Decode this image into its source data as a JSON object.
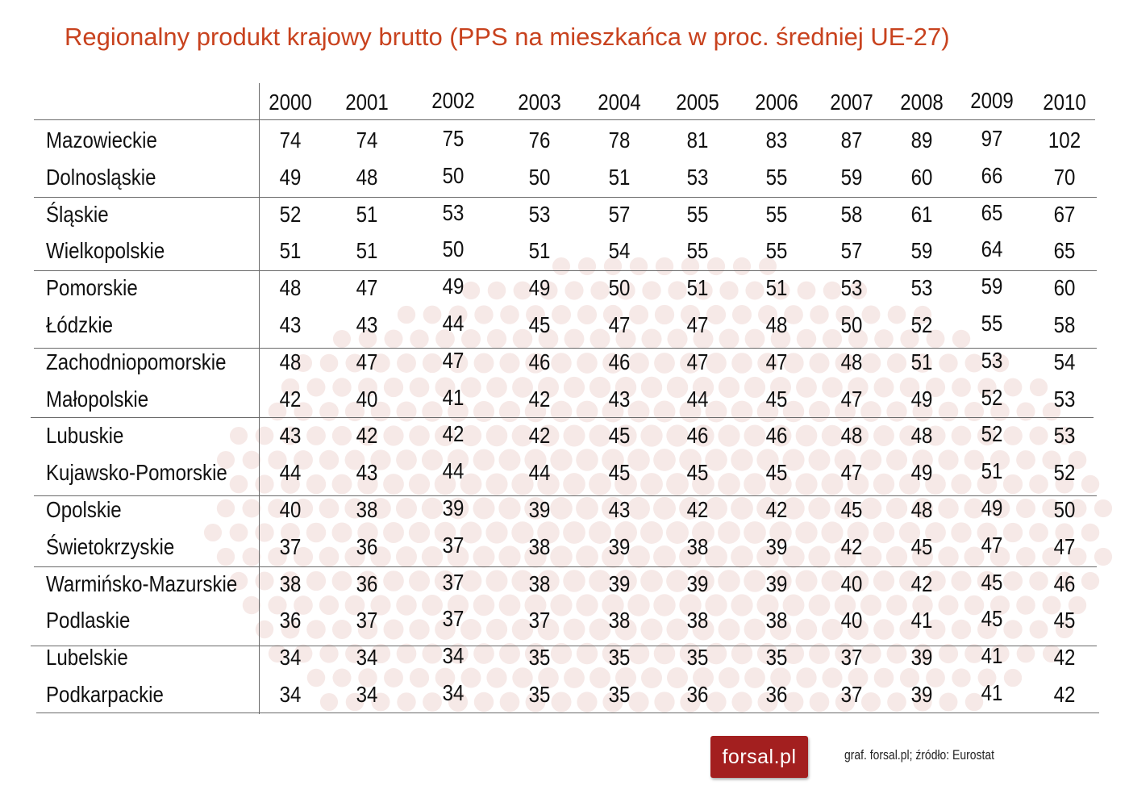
{
  "chart_data": {
    "type": "table",
    "title": "Regionalny produkt krajowy brutto (PPS na mieszkańca w proc. średniej UE-27)",
    "columns": [
      "2000",
      "2001",
      "2002",
      "2003",
      "2004",
      "2005",
      "2006",
      "2007",
      "2008",
      "2009",
      "2010"
    ],
    "rows": [
      {
        "region": "Mazowieckie",
        "values": [
          74,
          74,
          75,
          76,
          78,
          81,
          83,
          87,
          89,
          97,
          102
        ]
      },
      {
        "region": "Dolnosląskie",
        "values": [
          49,
          48,
          50,
          50,
          51,
          53,
          55,
          59,
          60,
          66,
          70
        ]
      },
      {
        "region": "Śląskie",
        "values": [
          52,
          51,
          53,
          53,
          57,
          55,
          55,
          58,
          61,
          65,
          67
        ]
      },
      {
        "region": "Wielkopolskie",
        "values": [
          51,
          51,
          50,
          51,
          54,
          55,
          55,
          57,
          59,
          64,
          65
        ]
      },
      {
        "region": "Pomorskie",
        "values": [
          48,
          47,
          49,
          49,
          50,
          51,
          51,
          53,
          53,
          59,
          60
        ]
      },
      {
        "region": "Łódzkie",
        "values": [
          43,
          43,
          44,
          45,
          47,
          47,
          48,
          50,
          52,
          55,
          58
        ]
      },
      {
        "region": "Zachodniopomorskie",
        "values": [
          48,
          47,
          47,
          46,
          46,
          47,
          47,
          48,
          51,
          53,
          54
        ]
      },
      {
        "region": "Małopolskie",
        "values": [
          42,
          40,
          41,
          42,
          43,
          44,
          45,
          47,
          49,
          52,
          53
        ]
      },
      {
        "region": "Lubuskie",
        "values": [
          43,
          42,
          42,
          42,
          45,
          46,
          46,
          48,
          48,
          52,
          53
        ]
      },
      {
        "region": "Kujawsko-Pomorskie",
        "values": [
          44,
          43,
          44,
          44,
          45,
          45,
          45,
          47,
          49,
          51,
          52
        ]
      },
      {
        "region": "Opolskie",
        "values": [
          40,
          38,
          39,
          39,
          43,
          42,
          42,
          45,
          48,
          49,
          50
        ]
      },
      {
        "region": "Świetokrzyskie",
        "values": [
          37,
          36,
          37,
          38,
          39,
          38,
          39,
          42,
          45,
          47,
          47
        ]
      },
      {
        "region": "Warmińsko-Mazurskie",
        "values": [
          38,
          36,
          37,
          38,
          39,
          39,
          39,
          40,
          42,
          45,
          46
        ]
      },
      {
        "region": "Podlaskie",
        "values": [
          36,
          37,
          37,
          37,
          38,
          38,
          38,
          40,
          41,
          45,
          45
        ]
      },
      {
        "region": "Lubelskie",
        "values": [
          34,
          34,
          34,
          35,
          35,
          35,
          35,
          37,
          39,
          41,
          42
        ]
      },
      {
        "region": "Podkarpackie",
        "values": [
          34,
          34,
          34,
          35,
          35,
          36,
          36,
          37,
          39,
          41,
          42
        ]
      }
    ]
  },
  "footer": {
    "logo_text": "forsal.pl",
    "credit": "graf. forsal.pl;  źródło: Eurostat"
  },
  "colors": {
    "title": "#c8421e",
    "logo_bg": "#a31f1f",
    "background_dots": "#f6e9e7"
  }
}
